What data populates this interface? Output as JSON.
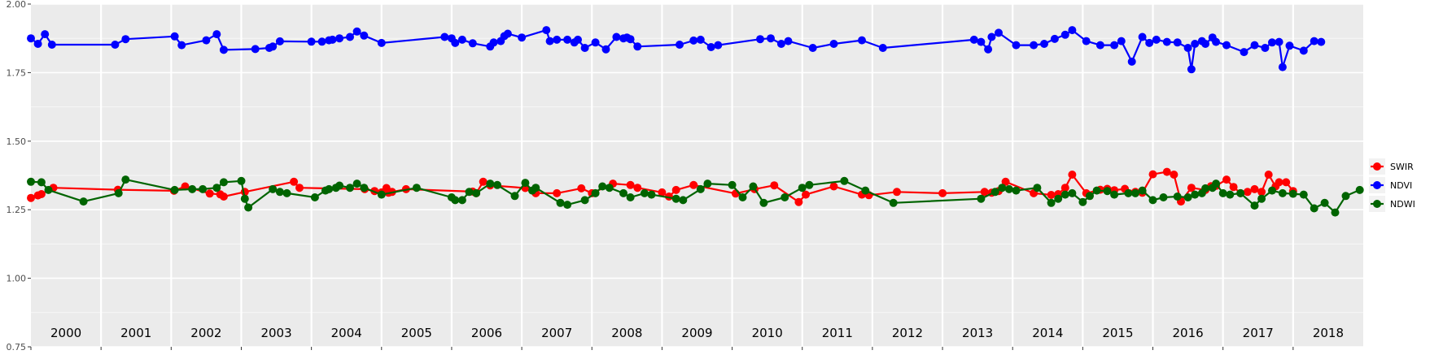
{
  "chart_data": {
    "type": "line",
    "title": "",
    "xlabel": "",
    "ylabel": "",
    "xlim": [
      2000.0,
      2019.0
    ],
    "ylim": [
      0.75,
      2.0
    ],
    "y_ticks": [
      "0.75",
      "1.00",
      "1.25",
      "1.50",
      "1.75",
      "2.00"
    ],
    "year_labels": [
      "2000",
      "2001",
      "2002",
      "2003",
      "2004",
      "2005",
      "2006",
      "2007",
      "2008",
      "2009",
      "2010",
      "2011",
      "2012",
      "2013",
      "2014",
      "2015",
      "2016",
      "2017",
      "2018"
    ],
    "grid": true,
    "legend_position": "right",
    "series": [
      {
        "name": "SWIR",
        "color": "#ff0000",
        "x": [
          2000.0,
          2000.1,
          2000.15,
          2000.32,
          2001.24,
          2002.04,
          2002.2,
          2002.55,
          2002.7,
          2002.75,
          2003.05,
          2003.75,
          2003.83,
          2004.76,
          2004.9,
          2005.0,
          2005.07,
          2005.1,
          2005.15,
          2005.35,
          2006.3,
          2006.35,
          2006.45,
          2006.55,
          2007.05,
          2007.2,
          2007.5,
          2007.85,
          2008.0,
          2008.3,
          2008.55,
          2008.65,
          2009.0,
          2009.1,
          2009.2,
          2009.45,
          2010.05,
          2010.32,
          2010.6,
          2010.95,
          2011.05,
          2011.45,
          2011.85,
          2011.95,
          2012.35,
          2013.0,
          2013.6,
          2013.7,
          2013.8,
          2013.9,
          2014.3,
          2014.55,
          2014.65,
          2014.75,
          2014.85,
          2015.05,
          2015.25,
          2015.35,
          2015.45,
          2015.6,
          2015.75,
          2015.85,
          2016.0,
          2016.2,
          2016.3,
          2016.4,
          2016.55,
          2016.75,
          2016.83,
          2016.9,
          2017.05,
          2017.15,
          2017.25,
          2017.35,
          2017.45,
          2017.55,
          2017.65,
          2017.75,
          2017.8,
          2017.9,
          2018.0
        ],
        "y": [
          1.293,
          1.302,
          1.307,
          1.33,
          1.323,
          1.319,
          1.335,
          1.309,
          1.306,
          1.298,
          1.315,
          1.352,
          1.33,
          1.325,
          1.318,
          1.313,
          1.329,
          1.312,
          1.315,
          1.325,
          1.316,
          1.31,
          1.352,
          1.339,
          1.329,
          1.31,
          1.31,
          1.328,
          1.31,
          1.345,
          1.34,
          1.33,
          1.313,
          1.298,
          1.322,
          1.34,
          1.309,
          1.325,
          1.339,
          1.278,
          1.305,
          1.335,
          1.305,
          1.303,
          1.315,
          1.31,
          1.315,
          1.312,
          1.318,
          1.352,
          1.31,
          1.304,
          1.307,
          1.33,
          1.378,
          1.31,
          1.323,
          1.326,
          1.321,
          1.326,
          1.315,
          1.312,
          1.379,
          1.388,
          1.378,
          1.28,
          1.33,
          1.322,
          1.336,
          1.337,
          1.36,
          1.333,
          1.31,
          1.315,
          1.325,
          1.315,
          1.378,
          1.335,
          1.35,
          1.35,
          1.318
        ]
      },
      {
        "name": "NDVI",
        "color": "#0000ff",
        "x": [
          2000.0,
          2000.1,
          2000.2,
          2000.3,
          2001.2,
          2001.35,
          2002.05,
          2002.15,
          2002.5,
          2002.65,
          2002.75,
          2003.2,
          2003.4,
          2003.45,
          2003.55,
          2004.0,
          2004.15,
          2004.25,
          2004.3,
          2004.4,
          2004.55,
          2004.65,
          2004.75,
          2005.0,
          2005.9,
          2006.0,
          2006.05,
          2006.15,
          2006.3,
          2006.55,
          2006.6,
          2006.7,
          2006.75,
          2006.8,
          2007.0,
          2007.35,
          2007.4,
          2007.5,
          2007.65,
          2007.75,
          2007.8,
          2007.9,
          2008.05,
          2008.2,
          2008.35,
          2008.45,
          2008.5,
          2008.55,
          2008.65,
          2009.25,
          2009.45,
          2009.55,
          2009.7,
          2009.8,
          2010.4,
          2010.55,
          2010.7,
          2010.8,
          2011.15,
          2011.45,
          2011.85,
          2012.15,
          2013.45,
          2013.55,
          2013.65,
          2013.7,
          2013.8,
          2014.05,
          2014.3,
          2014.45,
          2014.6,
          2014.75,
          2014.85,
          2015.05,
          2015.25,
          2015.45,
          2015.55,
          2015.7,
          2015.85,
          2015.95,
          2016.05,
          2016.2,
          2016.35,
          2016.5,
          2016.55,
          2016.6,
          2016.7,
          2016.75,
          2016.85,
          2016.9,
          2017.05,
          2017.3,
          2017.45,
          2017.6,
          2017.7,
          2017.8,
          2017.85,
          2017.95,
          2018.15,
          2018.3,
          2018.4
        ],
        "y": [
          1.875,
          1.855,
          1.89,
          1.852,
          1.852,
          1.872,
          1.882,
          1.85,
          1.868,
          1.89,
          1.833,
          1.836,
          1.84,
          1.845,
          1.864,
          1.863,
          1.863,
          1.868,
          1.87,
          1.875,
          1.88,
          1.9,
          1.885,
          1.858,
          1.88,
          1.875,
          1.858,
          1.87,
          1.857,
          1.845,
          1.86,
          1.865,
          1.883,
          1.892,
          1.878,
          1.905,
          1.865,
          1.87,
          1.87,
          1.86,
          1.87,
          1.84,
          1.86,
          1.835,
          1.88,
          1.875,
          1.878,
          1.872,
          1.845,
          1.852,
          1.867,
          1.87,
          1.843,
          1.85,
          1.872,
          1.875,
          1.855,
          1.865,
          1.84,
          1.855,
          1.868,
          1.84,
          1.87,
          1.862,
          1.835,
          1.88,
          1.895,
          1.85,
          1.85,
          1.855,
          1.873,
          1.888,
          1.905,
          1.865,
          1.85,
          1.85,
          1.865,
          1.79,
          1.88,
          1.858,
          1.87,
          1.862,
          1.86,
          1.84,
          1.762,
          1.855,
          1.865,
          1.855,
          1.878,
          1.862,
          1.85,
          1.825,
          1.85,
          1.84,
          1.86,
          1.862,
          1.77,
          1.848,
          1.83,
          1.865,
          1.862
        ]
      },
      {
        "name": "NDWI",
        "color": "#006400",
        "x": [
          2000.0,
          2000.15,
          2000.25,
          2000.75,
          2001.25,
          2001.35,
          2002.05,
          2002.3,
          2002.45,
          2002.65,
          2002.75,
          2003.0,
          2003.05,
          2003.1,
          2003.45,
          2003.55,
          2003.65,
          2004.05,
          2004.2,
          2004.25,
          2004.35,
          2004.4,
          2004.55,
          2004.65,
          2004.75,
          2005.0,
          2005.5,
          2006.0,
          2006.05,
          2006.15,
          2006.25,
          2006.35,
          2006.55,
          2006.65,
          2006.9,
          2007.05,
          2007.15,
          2007.2,
          2007.55,
          2007.65,
          2007.9,
          2008.05,
          2008.15,
          2008.25,
          2008.45,
          2008.55,
          2008.75,
          2008.85,
          2009.2,
          2009.3,
          2009.55,
          2009.65,
          2010.0,
          2010.15,
          2010.3,
          2010.45,
          2010.75,
          2011.0,
          2011.1,
          2011.6,
          2011.9,
          2012.3,
          2013.55,
          2013.75,
          2013.85,
          2013.95,
          2014.05,
          2014.35,
          2014.55,
          2014.65,
          2014.75,
          2014.85,
          2015.0,
          2015.1,
          2015.2,
          2015.35,
          2015.45,
          2015.65,
          2015.75,
          2015.85,
          2016.0,
          2016.15,
          2016.35,
          2016.5,
          2016.6,
          2016.7,
          2016.75,
          2016.85,
          2016.9,
          2017.0,
          2017.1,
          2017.25,
          2017.45,
          2017.55,
          2017.7,
          2017.85,
          2018.0,
          2018.15,
          2018.3,
          2018.45,
          2018.6,
          2018.75,
          2018.95
        ],
        "y": [
          1.352,
          1.35,
          1.322,
          1.28,
          1.31,
          1.36,
          1.322,
          1.325,
          1.325,
          1.33,
          1.35,
          1.355,
          1.29,
          1.258,
          1.325,
          1.315,
          1.31,
          1.295,
          1.32,
          1.325,
          1.33,
          1.338,
          1.33,
          1.345,
          1.33,
          1.305,
          1.33,
          1.295,
          1.285,
          1.285,
          1.315,
          1.31,
          1.345,
          1.34,
          1.3,
          1.348,
          1.32,
          1.33,
          1.275,
          1.268,
          1.285,
          1.31,
          1.335,
          1.33,
          1.31,
          1.295,
          1.31,
          1.305,
          1.29,
          1.285,
          1.325,
          1.345,
          1.34,
          1.295,
          1.335,
          1.275,
          1.295,
          1.33,
          1.34,
          1.355,
          1.32,
          1.275,
          1.29,
          1.315,
          1.33,
          1.325,
          1.32,
          1.33,
          1.275,
          1.29,
          1.305,
          1.31,
          1.278,
          1.3,
          1.32,
          1.318,
          1.305,
          1.31,
          1.31,
          1.32,
          1.285,
          1.295,
          1.298,
          1.295,
          1.305,
          1.31,
          1.328,
          1.33,
          1.345,
          1.31,
          1.305,
          1.31,
          1.265,
          1.29,
          1.32,
          1.31,
          1.308,
          1.305,
          1.255,
          1.275,
          1.24,
          1.3,
          1.322
        ]
      }
    ]
  }
}
